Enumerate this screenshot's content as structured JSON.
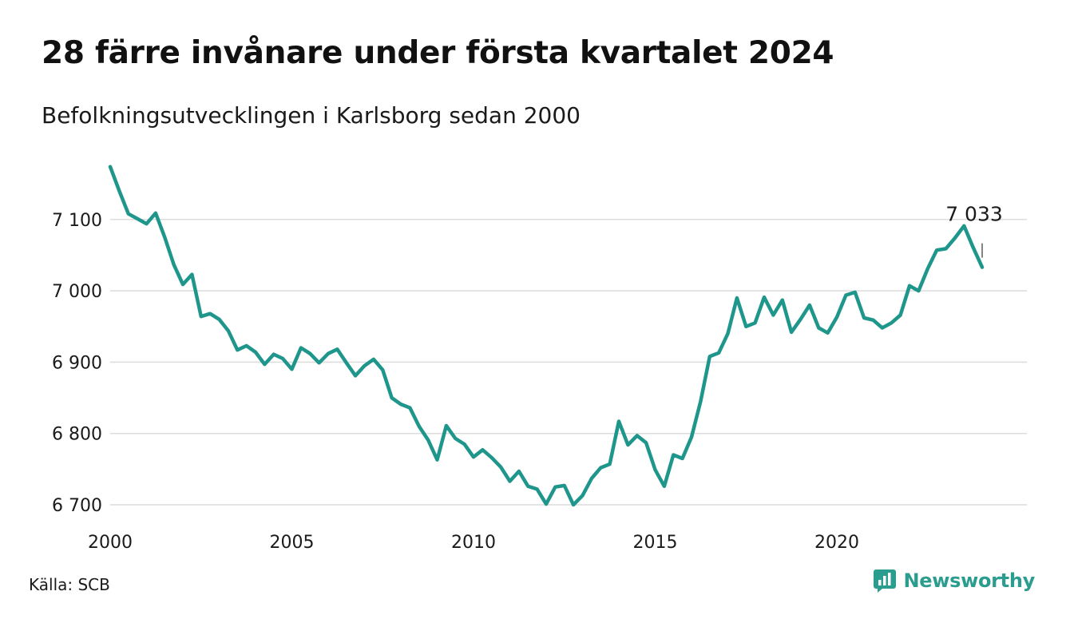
{
  "header": {
    "title": "28 färre invånare under första kvartalet 2024",
    "subtitle": "Befolkningsutvecklingen i Karlsborg sedan 2000"
  },
  "footer": {
    "source": "Källa: SCB",
    "brand": "Newsworthy"
  },
  "colors": {
    "line": "#1f968b",
    "grid": "#dcdcdc",
    "brand": "#2a9d8f"
  },
  "icons": {
    "brand_logo": "newsworthy-logo-icon"
  },
  "chart_data": {
    "type": "line",
    "title": "28 färre invånare under första kvartalet 2024",
    "subtitle": "Befolkningsutvecklingen i Karlsborg sedan 2000",
    "xlabel": "",
    "ylabel": "",
    "xlim": [
      2000,
      2025
    ],
    "ylim": [
      6690,
      7180
    ],
    "yticks": [
      6700,
      6800,
      6900,
      7000,
      7100
    ],
    "ytick_labels": [
      "6 700",
      "6 800",
      "6 900",
      "7 000",
      "7 100"
    ],
    "xticks": [
      2000,
      2005,
      2010,
      2015,
      2020
    ],
    "xtick_labels": [
      "2000",
      "2005",
      "2010",
      "2015",
      "2020"
    ],
    "grid": "horizontal",
    "x_format": "quarterly (year + (quarter-1)/4)",
    "series": [
      {
        "values": [
          [
            2000.0,
            7174
          ],
          [
            2000.25,
            7140
          ],
          [
            2000.5,
            7108
          ],
          [
            2000.75,
            7101
          ],
          [
            2001.0,
            7094
          ],
          [
            2001.25,
            7109
          ],
          [
            2001.5,
            7075
          ],
          [
            2001.75,
            7037
          ],
          [
            2002.0,
            7009
          ],
          [
            2002.25,
            7023
          ],
          [
            2002.5,
            6964
          ],
          [
            2002.75,
            6968
          ],
          [
            2003.0,
            6960
          ],
          [
            2003.25,
            6944
          ],
          [
            2003.5,
            6917
          ],
          [
            2003.75,
            6923
          ],
          [
            2004.0,
            6914
          ],
          [
            2004.25,
            6897
          ],
          [
            2004.5,
            6911
          ],
          [
            2004.75,
            6905
          ],
          [
            2005.0,
            6890
          ],
          [
            2005.25,
            6920
          ],
          [
            2005.5,
            6912
          ],
          [
            2005.75,
            6899
          ],
          [
            2006.0,
            6912
          ],
          [
            2006.25,
            6918
          ],
          [
            2006.5,
            6899
          ],
          [
            2006.75,
            6881
          ],
          [
            2007.0,
            6895
          ],
          [
            2007.25,
            6904
          ],
          [
            2007.5,
            6889
          ],
          [
            2007.75,
            6850
          ],
          [
            2008.0,
            6841
          ],
          [
            2008.25,
            6836
          ],
          [
            2008.5,
            6810
          ],
          [
            2008.75,
            6791
          ],
          [
            2009.0,
            6763
          ],
          [
            2009.25,
            6811
          ],
          [
            2009.5,
            6793
          ],
          [
            2009.75,
            6785
          ],
          [
            2010.0,
            6767
          ],
          [
            2010.25,
            6777
          ],
          [
            2010.5,
            6766
          ],
          [
            2010.75,
            6753
          ],
          [
            2011.0,
            6733
          ],
          [
            2011.25,
            6747
          ],
          [
            2011.5,
            6726
          ],
          [
            2011.75,
            6722
          ],
          [
            2012.0,
            6701
          ],
          [
            2012.25,
            6725
          ],
          [
            2012.5,
            6727
          ],
          [
            2012.75,
            6700
          ],
          [
            2013.0,
            6713
          ],
          [
            2013.25,
            6737
          ],
          [
            2013.5,
            6752
          ],
          [
            2013.75,
            6757
          ],
          [
            2014.0,
            6817
          ],
          [
            2014.25,
            6784
          ],
          [
            2014.5,
            6797
          ],
          [
            2014.75,
            6787
          ],
          [
            2015.0,
            6749
          ],
          [
            2015.25,
            6726
          ],
          [
            2015.5,
            6770
          ],
          [
            2015.75,
            6765
          ],
          [
            2016.0,
            6795
          ],
          [
            2016.25,
            6845
          ],
          [
            2016.5,
            6908
          ],
          [
            2016.75,
            6913
          ],
          [
            2017.0,
            6940
          ],
          [
            2017.25,
            6990
          ],
          [
            2017.5,
            6950
          ],
          [
            2017.75,
            6955
          ],
          [
            2018.0,
            6991
          ],
          [
            2018.25,
            6966
          ],
          [
            2018.5,
            6987
          ],
          [
            2018.75,
            6942
          ],
          [
            2019.0,
            6960
          ],
          [
            2019.25,
            6980
          ],
          [
            2019.5,
            6948
          ],
          [
            2019.75,
            6941
          ],
          [
            2020.0,
            6963
          ],
          [
            2020.25,
            6994
          ],
          [
            2020.5,
            6998
          ],
          [
            2020.75,
            6962
          ],
          [
            2021.0,
            6959
          ],
          [
            2021.25,
            6948
          ],
          [
            2021.5,
            6955
          ],
          [
            2021.75,
            6966
          ],
          [
            2022.0,
            7007
          ],
          [
            2022.25,
            7000
          ],
          [
            2022.5,
            7031
          ],
          [
            2022.75,
            7057
          ],
          [
            2023.0,
            7059
          ],
          [
            2023.25,
            7074
          ],
          [
            2023.5,
            7091
          ],
          [
            2023.75,
            7061
          ],
          [
            2024.0,
            7033
          ]
        ]
      }
    ],
    "annotations": [
      {
        "text": "7 033",
        "x": 2024.0,
        "y": 7033
      }
    ]
  }
}
